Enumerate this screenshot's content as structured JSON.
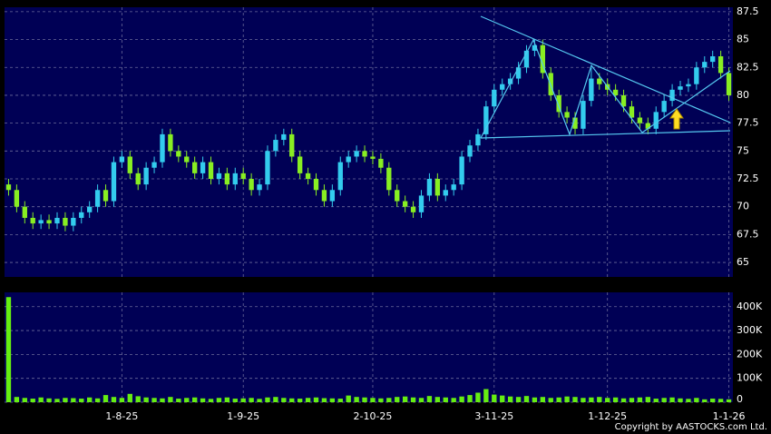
{
  "chart_data": {
    "type": "candlestick",
    "categories": [
      null,
      null,
      null,
      null,
      null,
      null,
      null,
      null,
      null,
      null,
      null,
      null,
      null,
      null,
      "1-8-25",
      null,
      null,
      null,
      null,
      null,
      null,
      null,
      null,
      null,
      null,
      null,
      null,
      null,
      null,
      "1-9-25",
      null,
      null,
      null,
      null,
      null,
      null,
      null,
      null,
      null,
      null,
      null,
      null,
      null,
      null,
      null,
      "2-10-25",
      null,
      null,
      null,
      null,
      null,
      null,
      null,
      null,
      null,
      null,
      null,
      null,
      null,
      null,
      "3-11-25",
      null,
      null,
      null,
      null,
      null,
      null,
      null,
      null,
      null,
      null,
      null,
      null,
      null,
      "1-12-25",
      null,
      null,
      null,
      null,
      null,
      null,
      null,
      null,
      null,
      null,
      null,
      null,
      null,
      null,
      "1-1-26"
    ],
    "open": [
      72,
      71.5,
      70,
      69,
      68.5,
      68.8,
      68.5,
      69,
      68.3,
      69,
      69.5,
      70,
      71.5,
      70.5,
      74,
      74.5,
      73,
      72,
      73.5,
      74,
      76.5,
      75,
      74.5,
      74,
      73,
      74,
      72.5,
      73,
      72,
      73,
      72.5,
      71.5,
      72,
      75,
      76,
      76.5,
      74.5,
      73,
      72.5,
      71.5,
      70.5,
      71.5,
      74,
      74.5,
      75,
      74.5,
      74.3,
      73.5,
      71.5,
      70.5,
      70,
      69.5,
      71,
      72.5,
      71,
      71.5,
      72,
      74.5,
      75.5,
      76.5,
      79,
      80.5,
      81,
      81.5,
      82.5,
      84,
      84.5,
      82,
      80,
      78.5,
      78,
      77,
      79.5,
      81.5,
      81,
      80.5,
      80,
      79,
      78,
      77.5,
      77,
      78.5,
      79.5,
      80.5,
      80.8,
      81,
      82.5,
      83,
      83.5,
      82
    ],
    "high": [
      72.5,
      72,
      70.5,
      69.5,
      69.3,
      69.3,
      69.5,
      69.5,
      69.5,
      70,
      70.5,
      72,
      72,
      74.5,
      75,
      75,
      73.5,
      74,
      74.5,
      77,
      77,
      75.5,
      75,
      74.5,
      74.5,
      74.5,
      73.5,
      73.5,
      73.5,
      73.5,
      73,
      72.5,
      75.5,
      76.5,
      77,
      77,
      75,
      73.5,
      73,
      72,
      72,
      74.5,
      75,
      75.5,
      75.5,
      75,
      74.8,
      74,
      72,
      71,
      70.5,
      71.5,
      73,
      73,
      72,
      72.5,
      75,
      76,
      77,
      79.5,
      81,
      81.5,
      82,
      83,
      84.5,
      85,
      85,
      82.5,
      80.5,
      79,
      78.5,
      80,
      82.5,
      82,
      81.5,
      81,
      80.5,
      79.5,
      78.5,
      78,
      79,
      80,
      81,
      81.3,
      81.5,
      83,
      83.5,
      84,
      84,
      82.5
    ],
    "low": [
      71,
      69.5,
      68.5,
      68,
      68,
      68,
      68,
      67.8,
      67.8,
      68.5,
      69,
      69.5,
      70,
      70,
      73.5,
      72.5,
      71.5,
      71.5,
      73,
      73.5,
      74.5,
      74,
      73.5,
      72.5,
      72.5,
      72,
      72,
      71.5,
      71.5,
      72,
      71,
      71,
      71.5,
      74.5,
      75.5,
      74,
      72.5,
      72,
      71,
      70,
      70,
      71,
      73.5,
      74,
      74,
      73.8,
      73,
      71,
      70,
      69.5,
      69,
      69,
      70.5,
      70.5,
      70.5,
      71,
      71.5,
      74,
      75,
      76,
      78.5,
      80,
      80.5,
      81,
      82,
      83.5,
      81.5,
      79.5,
      78,
      77.5,
      76.5,
      76.5,
      79,
      80.5,
      80,
      79.5,
      78.5,
      77.5,
      77,
      76.5,
      76.5,
      78,
      79,
      80,
      80.3,
      80.5,
      82,
      82.5,
      81.5,
      79.5
    ],
    "close": [
      71.5,
      70,
      69,
      68.5,
      68.8,
      68.5,
      69,
      68.3,
      69,
      69.5,
      70,
      71.5,
      70.5,
      74,
      74.5,
      73,
      72,
      73.5,
      74,
      76.5,
      75,
      74.5,
      74,
      73,
      74,
      72.5,
      73,
      72,
      73,
      72.5,
      71.5,
      72,
      75,
      76,
      76.5,
      74.5,
      73,
      72.5,
      71.5,
      70.5,
      71.5,
      74,
      74.5,
      75,
      74.5,
      74.3,
      73.5,
      71.5,
      70.5,
      70,
      69.5,
      71,
      72.5,
      71,
      71.5,
      72,
      74.5,
      75.5,
      76.5,
      79,
      80.5,
      81,
      81.5,
      82.5,
      84,
      84.5,
      82,
      80,
      78.5,
      78,
      77,
      79.5,
      81.5,
      81,
      80.5,
      80,
      79,
      78,
      77.5,
      77,
      78.5,
      79.5,
      80.5,
      80.8,
      81,
      82.5,
      83,
      83.5,
      82,
      80
    ],
    "volume": [
      440000,
      22000,
      18000,
      15000,
      20000,
      16000,
      14000,
      18000,
      17000,
      15000,
      20000,
      16000,
      30000,
      22000,
      18000,
      35000,
      25000,
      20000,
      18000,
      16000,
      22000,
      15000,
      18000,
      20000,
      16000,
      14000,
      18000,
      20000,
      15000,
      16000,
      18000,
      14000,
      20000,
      22000,
      18000,
      16000,
      15000,
      18000,
      20000,
      17000,
      16000,
      15000,
      28000,
      22000,
      20000,
      18000,
      16000,
      18000,
      22000,
      24000,
      20000,
      18000,
      26000,
      22000,
      20000,
      18000,
      24000,
      30000,
      40000,
      55000,
      32000,
      28000,
      24000,
      22000,
      26000,
      20000,
      22000,
      18000,
      20000,
      24000,
      22000,
      18000,
      20000,
      22000,
      18000,
      20000,
      16000,
      18000,
      20000,
      22000,
      15000,
      18000,
      20000,
      16000,
      14000,
      18000,
      12000,
      15000,
      14000,
      12000
    ],
    "up_color": "#33ccee",
    "down_color": "#88ee22",
    "volume_color": "#66ee11",
    "ylim": [
      63.7,
      87.9
    ],
    "yticks": [
      87.5,
      85,
      82.5,
      80,
      77.5,
      75,
      72.5,
      70,
      67.5,
      65
    ],
    "volume_ylim": [
      0,
      460000
    ],
    "volume_ticks": [
      {
        "value": 400000,
        "label": "400K"
      },
      {
        "value": 300000,
        "label": "300K"
      },
      {
        "value": 200000,
        "label": "200K"
      },
      {
        "value": 100000,
        "label": "100K"
      },
      0
    ],
    "grid": true
  },
  "footer": {
    "copyright": "Copyright by AASTOCKS.com Ltd."
  }
}
